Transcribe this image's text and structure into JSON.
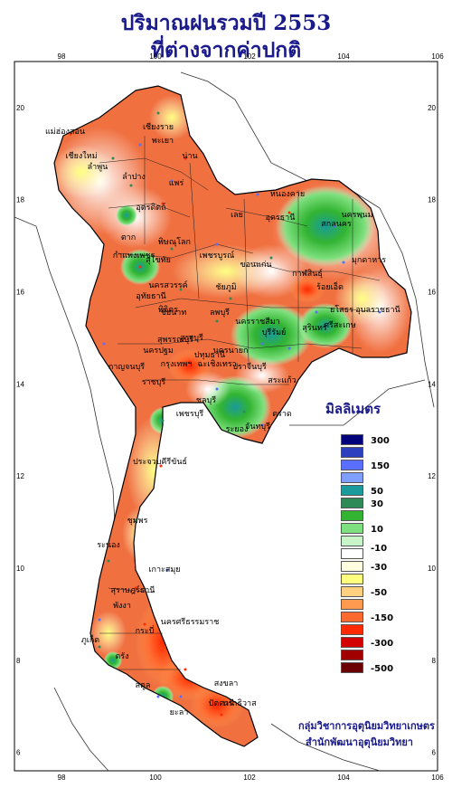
{
  "header": {
    "title_line1": "ปริมาณฝนรวมปี  2553",
    "title_line2": "ที่ต่างจากค่าปกติ"
  },
  "axes": {
    "x_ticks": [
      "98",
      "100",
      "102",
      "104",
      "106"
    ],
    "y_ticks": [
      "20",
      "18",
      "16",
      "14",
      "12",
      "10",
      "8",
      "6"
    ],
    "x_range": [
      97,
      106
    ],
    "y_range": [
      5.6,
      21
    ]
  },
  "legend": {
    "title": "มิลลิเมตร",
    "colors": [
      "#00007a",
      "#2b3fbf",
      "#5a6fff",
      "#7f9fff",
      "#1a9a9a",
      "#2e8b57",
      "#32b432",
      "#7ee07e",
      "#c8f5c8",
      "#ffffff",
      "#ffffe0",
      "#ffff80",
      "#ffd080",
      "#ff9a50",
      "#ff6a30",
      "#ff2a00",
      "#d40000",
      "#a00000",
      "#6a0000"
    ],
    "labels": [
      "300",
      "150",
      "50",
      "30",
      "10",
      "-10",
      "-30",
      "-50",
      "-150",
      "-300",
      "-500"
    ]
  },
  "provinces": [
    "เชียงราย",
    "แม่ฮ่องสอน",
    "เชียงใหม่",
    "พะเยา",
    "ลำพูน",
    "น่าน",
    "แพร่",
    "ลำปาง",
    "อุตรดิตถ์",
    "ตาก",
    "สุโขทัย",
    "พิษณุโลก",
    "กำแพงเพชร",
    "เพชรบูรณ์",
    "เลย",
    "หนองคาย",
    "อุดรธานี",
    "สกลนคร",
    "นครพนม",
    "มุกดาหาร",
    "ขอนแก่น",
    "กาฬสินธุ์",
    "ร้อยเอ็ด",
    "นครสวรรค์",
    "ชัยภูมิ",
    "อุบลราชธานี",
    "ยโสธร",
    "ศรีสะเกษ",
    "สุรินทร์",
    "บุรีรัมย์",
    "นครราชสีมา",
    "ลพบุรี",
    "ชัยนาท",
    "สุพรรณบุรี",
    "กาญจนบุรี",
    "ปทุมธานี",
    "ปราจีนบุรี",
    "สระแก้ว",
    "ชลบุรี",
    "ระยอง",
    "จันทบุรี",
    "ตราด",
    "เพชรบุรี",
    "ประจวบคีรีขันธ์",
    "ชุมพร",
    "ระนอง",
    "สุราษฎร์ธานี",
    "เกาะสมุย",
    "พังงา",
    "ภูเก็ต",
    "กระบี่",
    "นครศรีธรรมราช",
    "ตรัง",
    "สงขลา",
    "สตูล",
    "ปัตตานี",
    "ยะลา",
    "นราธิวาส",
    "อุทัยธานี",
    "พิจิตร",
    "ฉะเชิงเทรา",
    "นครนายก",
    "สระบุรี",
    "กรุงเทพฯ",
    "นครปฐม",
    "ราชบุรี"
  ],
  "credits": {
    "line1": "กลุ่มวิชาการอุตุนิยมวิทยาเกษตร",
    "line2": "สำนักพัฒนาอุตุนิยมวิทยา"
  },
  "colors": {
    "title": "#1a1a8c",
    "deficit_strong": "#ff2a00",
    "deficit": "#f06a38",
    "surplus": "#32b432"
  }
}
